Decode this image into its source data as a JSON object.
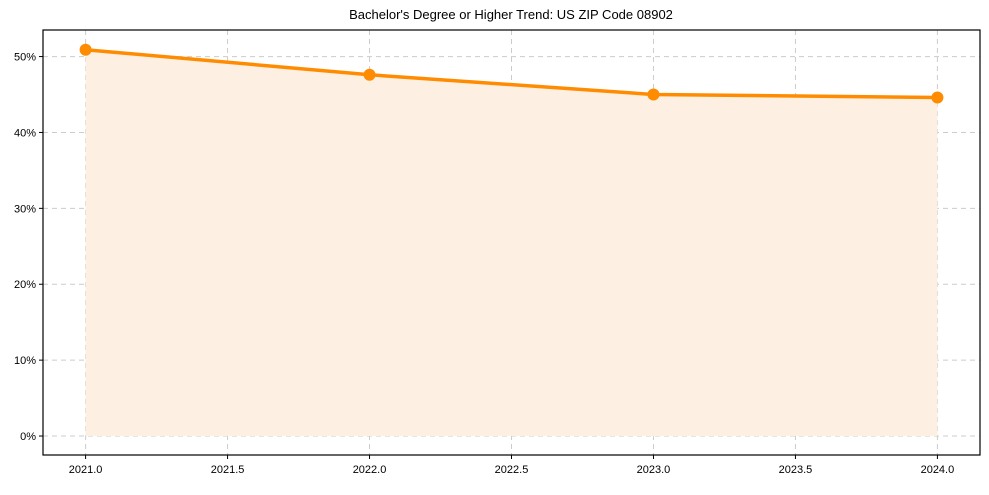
{
  "chart_data": {
    "type": "line",
    "title": "Bachelor's Degree or Higher Trend: US ZIP Code 08902",
    "xlabel": "",
    "ylabel": "",
    "x": [
      2021,
      2022,
      2023,
      2024
    ],
    "series": [
      {
        "name": "Bachelor's Degree or Higher",
        "values": [
          50.9,
          47.6,
          45.0,
          44.6
        ],
        "color": "#ff8c00",
        "fill_color": "#fdf0e3",
        "marker": "circle",
        "area_fill": true
      }
    ],
    "xlim": [
      2020.85,
      2024.15
    ],
    "ylim": [
      -2.5,
      53.5
    ],
    "x_ticks": [
      2021.0,
      2021.5,
      2022.0,
      2022.5,
      2023.0,
      2023.5,
      2024.0
    ],
    "x_tick_labels": [
      "2021.0",
      "2021.5",
      "2022.0",
      "2022.5",
      "2023.0",
      "2023.5",
      "2024.0"
    ],
    "y_ticks": [
      0,
      10,
      20,
      30,
      40,
      50
    ],
    "y_tick_labels": [
      "0%",
      "10%",
      "20%",
      "30%",
      "40%",
      "50%"
    ],
    "grid": true,
    "grid_style": "dashed",
    "legend": null
  }
}
